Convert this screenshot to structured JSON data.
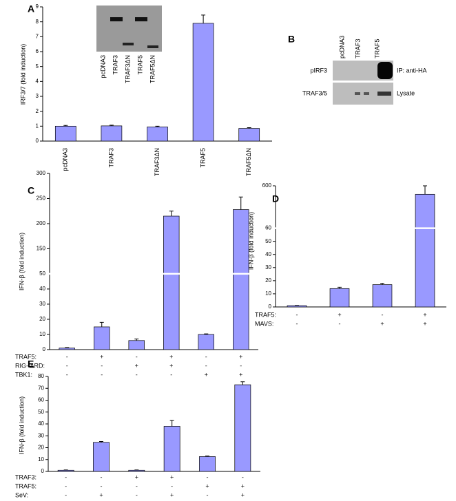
{
  "chart_data": [
    {
      "type": "bar",
      "panel": "A",
      "y_label": "IRF3/7 (fold induction)",
      "categories": [
        "pcDNA3",
        "TRAF3",
        "TRAF3ΔN",
        "TRAF5",
        "TRAF5ΔN"
      ],
      "values": [
        1.0,
        1.02,
        0.95,
        7.9,
        0.85
      ],
      "errors": [
        0.05,
        0.05,
        0.05,
        0.55,
        0.05
      ],
      "color": "#9999ff",
      "ylim": [
        0,
        9
      ],
      "yticks": [
        0,
        1,
        2,
        3,
        4,
        5,
        6,
        7,
        8,
        9
      ],
      "inset_labels": [
        "pcDNA3",
        "TRAF3",
        "TRAF3ΔN",
        "TRAF5",
        "TRAF5ΔN"
      ]
    },
    {
      "type": "bar",
      "panel": "C",
      "y_label": "IFN-β (fold induction)",
      "values": [
        1,
        15,
        6,
        215,
        10,
        228
      ],
      "errors": [
        0.3,
        3,
        1,
        10,
        0.4,
        25
      ],
      "color": "#9999ff",
      "ylim": [
        0,
        300
      ],
      "ybreak": [
        50,
        100
      ],
      "yticks": [
        0,
        10,
        20,
        30,
        40,
        50,
        150,
        200,
        250,
        300
      ],
      "conditions": [
        {
          "name": "TRAF5:",
          "signs": [
            "-",
            "+",
            "-",
            "+",
            "-",
            "+"
          ]
        },
        {
          "name": "RIG-IΔRD:",
          "signs": [
            "-",
            "-",
            "+",
            "+",
            "-",
            "-"
          ]
        },
        {
          "name": "TBK1:",
          "signs": [
            "-",
            "-",
            "-",
            "-",
            "+",
            "+"
          ]
        }
      ]
    },
    {
      "type": "bar",
      "panel": "D",
      "y_label": "IFN-β (fold induction)",
      "values": [
        1,
        14,
        17,
        580
      ],
      "errors": [
        0.2,
        1,
        1,
        20
      ],
      "color": "#9999ff",
      "ylim": [
        0,
        600
      ],
      "ybreak": [
        60,
        500
      ],
      "yticks": [
        0,
        10,
        20,
        30,
        40,
        50,
        60,
        600
      ],
      "conditions": [
        {
          "name": "TRAF5:",
          "signs": [
            "-",
            "+",
            "-",
            "+"
          ]
        },
        {
          "name": "MAVS:",
          "signs": [
            "-",
            "-",
            "+",
            "+"
          ]
        }
      ]
    },
    {
      "type": "bar",
      "panel": "E",
      "y_label": "IFN-β (fold induction)",
      "values": [
        1,
        24.5,
        1,
        38,
        12.5,
        73
      ],
      "errors": [
        0.2,
        0.7,
        0.2,
        5,
        0.5,
        2.5
      ],
      "color": "#9999ff",
      "ylim": [
        0,
        80
      ],
      "yticks": [
        0,
        10,
        20,
        30,
        40,
        50,
        60,
        70,
        80
      ],
      "conditions": [
        {
          "name": "TRAF3:",
          "signs": [
            "-",
            "-",
            "+",
            "+",
            "-",
            "-"
          ]
        },
        {
          "name": "TRAF5:",
          "signs": [
            "-",
            "-",
            "-",
            "-",
            "+",
            "+"
          ]
        },
        {
          "name": "SeV:",
          "signs": [
            "-",
            "+",
            "-",
            "+",
            "-",
            "+"
          ]
        }
      ]
    }
  ],
  "blot": {
    "panel": "B",
    "lanes": [
      "pcDNA3",
      "TRAF3",
      "TRAF5"
    ],
    "rows": [
      "pIRF3",
      "TRAF3/5"
    ],
    "notes": [
      "IP: anti-HA",
      "Lysate"
    ]
  }
}
